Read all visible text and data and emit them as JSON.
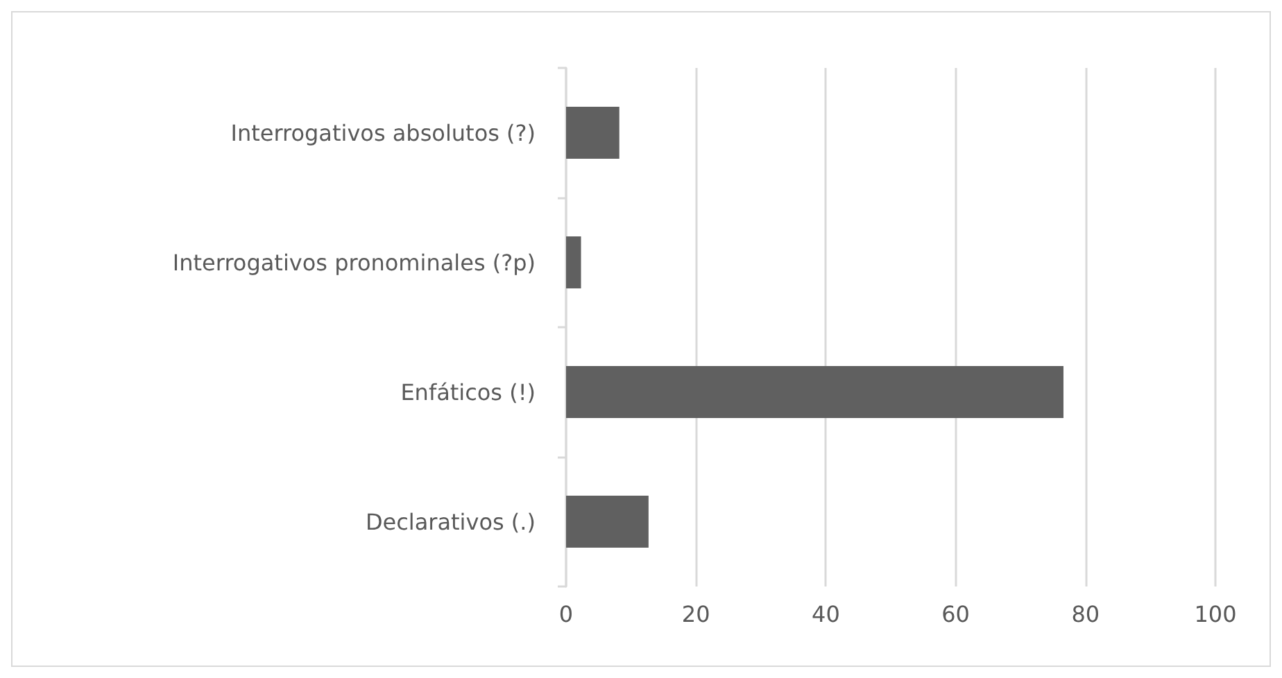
{
  "chart_data": {
    "type": "bar",
    "orientation": "horizontal",
    "categories": [
      "Interrogativos absolutos (?)",
      "Interrogativos pronominales (?p)",
      "Enfáticos (!)",
      "Declarativos (.)"
    ],
    "values": [
      8.2,
      2.3,
      76.6,
      12.7
    ],
    "color": "#606060",
    "xlim": [
      0,
      100
    ],
    "xticks": [
      0,
      20,
      40,
      60,
      80,
      100
    ],
    "grid": "x"
  }
}
